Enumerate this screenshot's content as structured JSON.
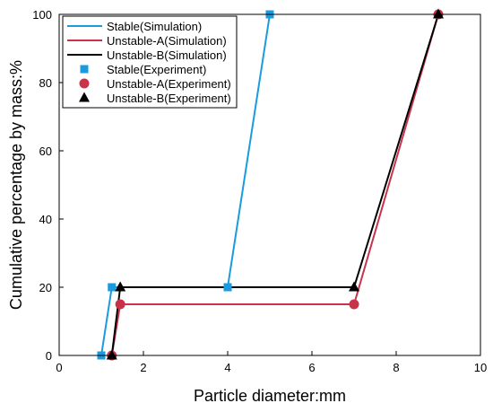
{
  "chart_data": {
    "type": "line",
    "xlabel": "Particle diameter:mm",
    "ylabel": "Cumulative percentage by mass:%",
    "xlim": [
      0,
      10
    ],
    "ylim": [
      0,
      100
    ],
    "xticks": [
      0,
      2,
      4,
      6,
      8,
      10
    ],
    "yticks": [
      0,
      20,
      40,
      60,
      80,
      100
    ],
    "xtick_labels": [
      "0",
      "2",
      "4",
      "6",
      "8",
      "10"
    ],
    "ytick_labels": [
      "0",
      "20",
      "40",
      "60",
      "80",
      "100"
    ],
    "grid": false,
    "legend_position": "top-left",
    "series": [
      {
        "name": "Stable(Simulation)",
        "kind": "line",
        "color": "#1a9be0",
        "x": [
          1.0,
          1.25,
          4.0,
          5.0
        ],
        "y": [
          0,
          20,
          20,
          100
        ]
      },
      {
        "name": "Unstable-A(Simulation)",
        "kind": "line",
        "color": "#c8334a",
        "x": [
          1.25,
          1.45,
          7.0,
          9.0
        ],
        "y": [
          0,
          15,
          15,
          100
        ]
      },
      {
        "name": "Unstable-B(Simulation)",
        "kind": "line",
        "color": "#000000",
        "x": [
          1.25,
          1.45,
          7.0,
          9.0
        ],
        "y": [
          0,
          20,
          20,
          100
        ]
      },
      {
        "name": "Stable(Experiment)",
        "kind": "marker",
        "marker": "square",
        "color": "#1a9be0",
        "x": [
          1.0,
          1.25,
          4.0,
          5.0
        ],
        "y": [
          0,
          20,
          20,
          100
        ]
      },
      {
        "name": "Unstable-A(Experiment)",
        "kind": "marker",
        "marker": "circle",
        "color": "#c8334a",
        "x": [
          1.25,
          1.45,
          7.0,
          9.0
        ],
        "y": [
          0,
          15,
          15,
          100
        ]
      },
      {
        "name": "Unstable-B(Experiment)",
        "kind": "marker",
        "marker": "triangle",
        "color": "#000000",
        "x": [
          1.25,
          1.45,
          7.0,
          9.0
        ],
        "y": [
          0,
          20,
          20,
          100
        ]
      }
    ]
  }
}
